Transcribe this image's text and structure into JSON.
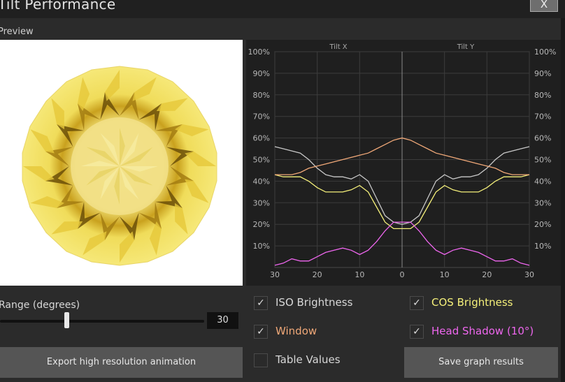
{
  "window": {
    "title": "Tilt Performance",
    "close_label": "X"
  },
  "preview": {
    "label": "Preview"
  },
  "range": {
    "label": "Range (degrees)",
    "value": "30",
    "slider_fraction": 0.33
  },
  "export_button": "Export high resolution animation",
  "save_button": "Save graph results",
  "options": {
    "iso": {
      "label": "ISO Brightness",
      "checked": true,
      "color": "#d8d8d8"
    },
    "cos": {
      "label": "COS Brightness",
      "checked": true,
      "color": "#f5f07a"
    },
    "window": {
      "label": "Window",
      "checked": true,
      "color": "#f0a878"
    },
    "head_shadow": {
      "label": "Head Shadow (10°)",
      "checked": true,
      "color": "#ee66ee"
    },
    "table_values": {
      "label": "Table Values",
      "checked": false
    }
  },
  "chart_data": {
    "type": "line",
    "section_labels": [
      "Tilt X",
      "Tilt Y"
    ],
    "x_ticks": [
      "30",
      "20",
      "10",
      "0",
      "10",
      "20",
      "30"
    ],
    "y_ticks": [
      "10%",
      "20%",
      "30%",
      "40%",
      "50%",
      "60%",
      "70%",
      "80%",
      "90%",
      "100%"
    ],
    "x": [
      -30,
      -28,
      -26,
      -24,
      -22,
      -20,
      -18,
      -16,
      -14,
      -12,
      -10,
      -8,
      -6,
      -4,
      -2,
      0,
      2,
      4,
      6,
      8,
      10,
      12,
      14,
      16,
      18,
      20,
      22,
      24,
      26,
      28,
      30
    ],
    "ylim": [
      0,
      100
    ],
    "grid": true,
    "series": [
      {
        "name": "ISO Brightness",
        "color": "#c8c8c8",
        "values": [
          56,
          55,
          54,
          53,
          50,
          46,
          43,
          42,
          42,
          41,
          43,
          40,
          32,
          24,
          21,
          20,
          21,
          24,
          32,
          40,
          43,
          41,
          42,
          42,
          43,
          46,
          50,
          53,
          54,
          55,
          56
        ]
      },
      {
        "name": "COS Brightness",
        "color": "#f5f07a",
        "values": [
          43,
          42,
          42,
          42,
          40,
          37,
          35,
          35,
          35,
          36,
          38,
          35,
          28,
          21,
          18,
          18,
          18,
          21,
          28,
          35,
          38,
          36,
          35,
          35,
          35,
          37,
          40,
          42,
          42,
          42,
          43
        ]
      },
      {
        "name": "Window",
        "color": "#f0a878",
        "values": [
          43,
          43,
          43,
          44,
          46,
          47,
          48,
          49,
          50,
          51,
          52,
          53,
          55,
          57,
          59,
          60,
          59,
          57,
          55,
          53,
          52,
          51,
          50,
          49,
          48,
          47,
          46,
          44,
          43,
          43,
          43
        ]
      },
      {
        "name": "Head Shadow (10°)",
        "color": "#ee66ee",
        "values": [
          1,
          2,
          4,
          3,
          3,
          5,
          7,
          8,
          9,
          8,
          6,
          8,
          12,
          17,
          21,
          21,
          21,
          17,
          12,
          8,
          6,
          8,
          9,
          8,
          7,
          5,
          3,
          3,
          4,
          2,
          1
        ]
      }
    ]
  }
}
